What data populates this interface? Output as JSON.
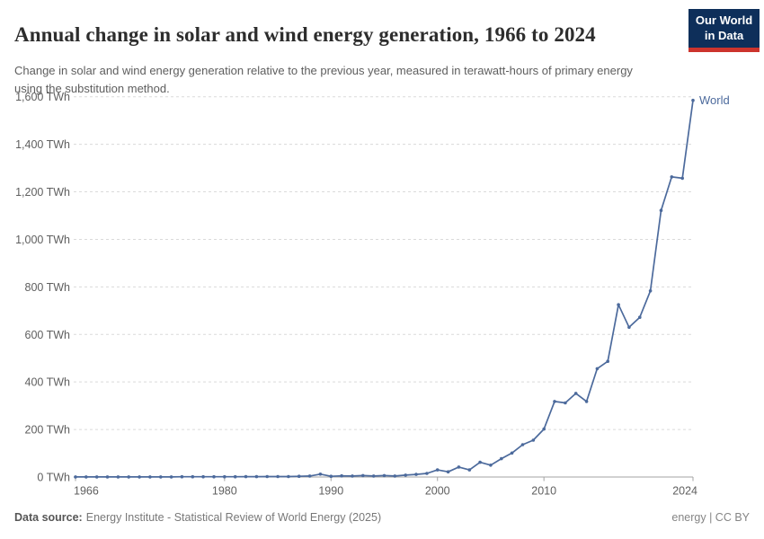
{
  "header": {
    "title": "Annual change in solar and wind energy generation, 1966 to 2024",
    "subtitle": "Change in solar and wind energy generation relative to the previous year, measured in terawatt-hours of primary energy using the substitution method.",
    "logo": {
      "line1": "Our World",
      "line2": "in Data",
      "bg_color": "#0e2f5a",
      "accent_color": "#cc342d"
    }
  },
  "chart_data": {
    "type": "line",
    "title": "Annual change in solar and wind energy generation, 1966 to 2024",
    "xlabel": "",
    "ylabel": "",
    "unit": "TWh",
    "grid": "horizontal-dashed",
    "legend_position": "end-of-line-label",
    "ylim": [
      0,
      1600
    ],
    "yticks": [
      0,
      200,
      400,
      600,
      800,
      1000,
      1200,
      1400,
      1600
    ],
    "ytick_suffix": " TWh",
    "xticks": [
      1966,
      1980,
      1990,
      2000,
      2010,
      2024
    ],
    "x": [
      1966,
      1967,
      1968,
      1969,
      1970,
      1971,
      1972,
      1973,
      1974,
      1975,
      1976,
      1977,
      1978,
      1979,
      1980,
      1981,
      1982,
      1983,
      1984,
      1985,
      1986,
      1987,
      1988,
      1989,
      1990,
      1991,
      1992,
      1993,
      1994,
      1995,
      1996,
      1997,
      1998,
      1999,
      2000,
      2001,
      2002,
      2003,
      2004,
      2005,
      2006,
      2007,
      2008,
      2009,
      2010,
      2011,
      2012,
      2013,
      2014,
      2015,
      2016,
      2017,
      2018,
      2019,
      2020,
      2021,
      2022,
      2023,
      2024
    ],
    "series": [
      {
        "name": "World",
        "color": "#4c6a9c",
        "values": [
          0.5,
          0.5,
          0.5,
          0.5,
          0.5,
          0.5,
          0.5,
          0.5,
          0.5,
          0.5,
          1,
          1,
          1,
          1,
          1,
          1,
          1.5,
          1.5,
          2,
          2,
          2,
          3,
          4,
          12,
          3,
          5,
          4,
          6,
          4,
          6,
          4,
          8,
          11,
          15,
          30,
          22,
          42,
          30,
          62,
          50,
          77,
          101,
          136,
          155,
          202,
          318,
          312,
          352,
          318,
          456,
          487,
          725,
          630,
          672,
          783,
          1122,
          1263,
          1257,
          1585
        ]
      }
    ]
  },
  "footer": {
    "datasource_label": "Data source:",
    "datasource_value": "Energy Institute - Statistical Review of World Energy (2025)",
    "license": "energy | CC BY"
  }
}
